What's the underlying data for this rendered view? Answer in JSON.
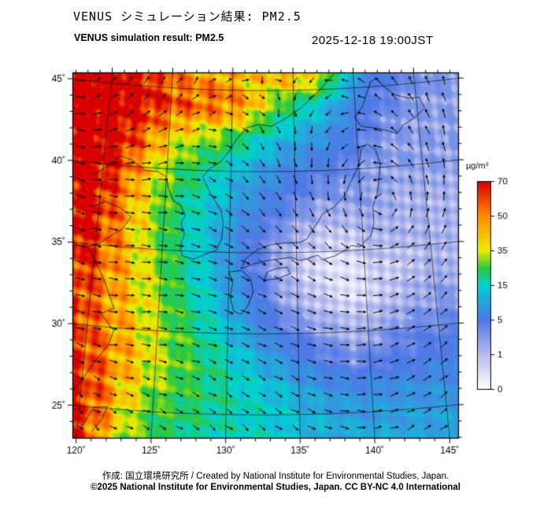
{
  "header": {
    "title_jp": "VENUS シミュレーション結果: PM2.5",
    "title_en": "VENUS simulation result: PM2.5",
    "datetime": "2025-12-18 19:00JST"
  },
  "footer": {
    "credit": "作成: 国立環境研究所 / Created by National Institute for Environmental Studies, Japan.",
    "license": "©2025 National Institute for Environmental Studies, Japan. CC BY-NC 4.0 International"
  },
  "chart_data": {
    "type": "heatmap",
    "title": "VENUS simulation result: PM2.5",
    "variable": "PM2.5 surface concentration with wind vectors",
    "units": "µg/m³",
    "axes": {
      "lat_ticks": [
        {
          "value": 45,
          "label": "45˚"
        },
        {
          "value": 40,
          "label": "40˚"
        },
        {
          "value": 35,
          "label": "35˚"
        },
        {
          "value": 30,
          "label": "30˚"
        },
        {
          "value": 25,
          "label": "25˚"
        }
      ],
      "lon_ticks": [
        {
          "value": 120,
          "label": "120˚"
        },
        {
          "value": 125,
          "label": "125˚"
        },
        {
          "value": 130,
          "label": "130˚"
        },
        {
          "value": 135,
          "label": "135˚"
        },
        {
          "value": 140,
          "label": "140˚"
        },
        {
          "value": 145,
          "label": "145˚"
        }
      ],
      "lon_range": [
        119.5,
        145.5
      ],
      "lat_range": [
        23,
        46
      ]
    },
    "colorbar": {
      "unit_label": "µg/m³",
      "ticks": [
        0,
        1,
        5,
        15,
        35,
        50,
        70
      ],
      "stops": [
        {
          "v": 0,
          "c": "#ffffff"
        },
        {
          "v": 1,
          "c": "#b8bcec"
        },
        {
          "v": 5,
          "c": "#5078e6"
        },
        {
          "v": 15,
          "c": "#00d2d2"
        },
        {
          "v": 25,
          "c": "#2cc83c"
        },
        {
          "v": 35,
          "c": "#ecec00"
        },
        {
          "v": 50,
          "c": "#ff8c00"
        },
        {
          "v": 70,
          "c": "#d80000"
        }
      ]
    },
    "grid": {
      "comment": "PM2.5 µg/m³ on lon 119..147 step 2 (cols) x lat 46..22 step -2 (rows)",
      "lon_start": 119,
      "lon_step": 2,
      "lat_start": 46,
      "lat_step": -2,
      "values": [
        [
          80,
          76,
          65,
          52,
          46,
          48,
          40,
          42,
          46,
          40,
          18,
          6,
          5,
          4,
          4
        ],
        [
          82,
          78,
          70,
          60,
          56,
          55,
          48,
          30,
          20,
          14,
          8,
          5,
          4,
          3,
          3
        ],
        [
          80,
          72,
          55,
          40,
          32,
          28,
          20,
          14,
          10,
          8,
          6,
          4,
          3,
          3,
          3
        ],
        [
          78,
          65,
          45,
          30,
          22,
          16,
          11,
          8,
          6,
          5,
          4,
          3,
          3,
          3,
          3
        ],
        [
          75,
          58,
          40,
          26,
          18,
          13,
          8,
          6,
          4,
          3,
          3,
          3,
          2,
          2,
          2
        ],
        [
          72,
          55,
          38,
          25,
          16,
          11,
          6,
          4,
          2,
          1,
          1,
          2,
          2,
          2,
          2
        ],
        [
          68,
          52,
          40,
          28,
          18,
          11,
          6,
          3,
          1,
          0.5,
          0.5,
          1,
          1,
          2,
          2
        ],
        [
          64,
          50,
          40,
          30,
          20,
          13,
          8,
          4,
          2,
          1,
          0.5,
          1,
          2,
          3,
          3
        ],
        [
          66,
          52,
          42,
          32,
          24,
          16,
          10,
          6,
          4,
          3,
          2,
          3,
          4,
          4,
          4
        ],
        [
          70,
          56,
          44,
          34,
          26,
          20,
          14,
          10,
          7,
          5,
          4,
          5,
          5,
          6,
          6
        ],
        [
          72,
          58,
          40,
          28,
          24,
          20,
          17,
          14,
          11,
          9,
          8,
          8,
          8,
          8,
          8
        ],
        [
          74,
          56,
          34,
          24,
          21,
          18,
          16,
          15,
          13,
          11,
          10,
          10,
          10,
          10,
          9
        ],
        [
          72,
          52,
          30,
          22,
          19,
          17,
          15,
          14,
          13,
          11,
          10,
          10,
          10,
          9,
          9
        ]
      ]
    },
    "wind": {
      "vortices": [
        {
          "lon": 141.8,
          "lat": 37.3,
          "k": 55
        },
        {
          "lon": 117.0,
          "lat": 46.0,
          "k": 45
        }
      ]
    },
    "coastlines": [
      [
        [
          119.2,
          25.5
        ],
        [
          119.8,
          26.3
        ],
        [
          120.3,
          27.1
        ],
        [
          120.9,
          28.0
        ],
        [
          121.6,
          28.9
        ],
        [
          121.9,
          29.8
        ],
        [
          121.4,
          30.3
        ],
        [
          120.9,
          30.8
        ],
        [
          121.8,
          31.2
        ],
        [
          121.4,
          31.9
        ],
        [
          121.0,
          32.7
        ],
        [
          120.4,
          33.6
        ],
        [
          119.8,
          34.4
        ],
        [
          119.4,
          34.8
        ],
        [
          120.3,
          35.1
        ],
        [
          120.9,
          35.5
        ],
        [
          121.9,
          36.1
        ],
        [
          122.5,
          36.9
        ],
        [
          121.6,
          37.4
        ],
        [
          120.4,
          37.7
        ],
        [
          119.6,
          37.3
        ],
        [
          119.2,
          37.4
        ]
      ],
      [
        [
          119.2,
          39.2
        ],
        [
          120.4,
          39.9
        ],
        [
          121.2,
          40.6
        ],
        [
          122.2,
          40.4
        ],
        [
          123.3,
          39.8
        ],
        [
          124.3,
          39.8
        ]
      ],
      [
        [
          124.3,
          39.8
        ],
        [
          125.0,
          39.5
        ],
        [
          125.2,
          38.8
        ],
        [
          125.6,
          38.1
        ],
        [
          126.2,
          37.8
        ],
        [
          126.6,
          37.2
        ],
        [
          126.3,
          36.7
        ],
        [
          126.6,
          36.0
        ],
        [
          126.3,
          35.3
        ],
        [
          126.5,
          34.7
        ],
        [
          127.3,
          34.5
        ],
        [
          128.1,
          34.8
        ],
        [
          129.0,
          35.1
        ],
        [
          129.4,
          35.8
        ],
        [
          129.5,
          36.8
        ],
        [
          129.3,
          37.6
        ],
        [
          128.6,
          38.4
        ],
        [
          128.2,
          39.0
        ],
        [
          127.8,
          39.6
        ],
        [
          128.3,
          40.1
        ],
        [
          129.2,
          40.6
        ],
        [
          129.8,
          41.2
        ],
        [
          130.4,
          42.0
        ]
      ],
      [
        [
          130.4,
          42.0
        ],
        [
          131.2,
          42.7
        ],
        [
          132.2,
          42.9
        ],
        [
          133.2,
          42.8
        ],
        [
          134.4,
          43.3
        ],
        [
          135.6,
          43.9
        ],
        [
          136.8,
          44.7
        ],
        [
          138.0,
          45.6
        ],
        [
          138.8,
          46.3
        ]
      ],
      [
        [
          130.0,
          33.8
        ],
        [
          130.3,
          33.1
        ],
        [
          130.1,
          32.3
        ],
        [
          130.4,
          31.4
        ],
        [
          130.9,
          31.2
        ],
        [
          131.4,
          31.7
        ],
        [
          131.8,
          32.6
        ],
        [
          131.6,
          33.4
        ],
        [
          130.9,
          33.9
        ],
        [
          130.0,
          33.8
        ]
      ],
      [
        [
          132.6,
          33.3
        ],
        [
          133.6,
          33.4
        ],
        [
          134.5,
          33.7
        ],
        [
          134.3,
          34.1
        ],
        [
          133.4,
          34.0
        ],
        [
          132.8,
          33.8
        ],
        [
          132.6,
          33.3
        ]
      ],
      [
        [
          130.9,
          34.0
        ],
        [
          131.8,
          34.3
        ],
        [
          132.7,
          34.5
        ],
        [
          133.6,
          34.6
        ],
        [
          134.6,
          34.7
        ],
        [
          135.2,
          34.5
        ],
        [
          135.8,
          34.6
        ],
        [
          136.6,
          34.8
        ],
        [
          136.9,
          34.5
        ],
        [
          137.8,
          34.7
        ],
        [
          138.6,
          35.0
        ],
        [
          139.1,
          35.3
        ],
        [
          139.8,
          35.2
        ],
        [
          140.1,
          35.5
        ],
        [
          140.6,
          35.8
        ],
        [
          140.9,
          36.6
        ],
        [
          140.9,
          37.6
        ],
        [
          141.3,
          38.4
        ],
        [
          141.5,
          39.2
        ],
        [
          141.7,
          40.2
        ],
        [
          141.4,
          41.1
        ],
        [
          140.8,
          41.5
        ],
        [
          140.3,
          41.2
        ],
        [
          140.1,
          40.5
        ],
        [
          139.8,
          39.9
        ],
        [
          139.3,
          39.2
        ],
        [
          138.8,
          38.4
        ],
        [
          137.9,
          37.7
        ],
        [
          137.0,
          37.3
        ],
        [
          136.8,
          37.0
        ],
        [
          136.2,
          36.3
        ],
        [
          135.8,
          35.8
        ],
        [
          135.2,
          35.6
        ],
        [
          134.2,
          35.6
        ],
        [
          133.1,
          35.5
        ],
        [
          132.1,
          35.2
        ],
        [
          131.2,
          34.6
        ],
        [
          130.9,
          34.0
        ]
      ],
      [
        [
          140.4,
          42.6
        ],
        [
          141.2,
          42.5
        ],
        [
          142.2,
          42.3
        ],
        [
          143.2,
          42.0
        ],
        [
          143.8,
          42.5
        ],
        [
          144.8,
          42.9
        ],
        [
          145.6,
          43.4
        ],
        [
          145.3,
          44.1
        ],
        [
          144.4,
          44.1
        ],
        [
          143.3,
          44.4
        ],
        [
          142.4,
          45.0
        ],
        [
          141.9,
          45.5
        ],
        [
          141.4,
          45.3
        ],
        [
          141.0,
          44.6
        ],
        [
          140.6,
          43.8
        ],
        [
          139.9,
          43.2
        ],
        [
          140.4,
          42.6
        ]
      ],
      [
        [
          120.2,
          23.6
        ],
        [
          121.0,
          25.0
        ],
        [
          121.9,
          25.1
        ],
        [
          121.6,
          24.3
        ],
        [
          121.0,
          23.5
        ]
      ],
      [
        [
          141.8,
          46.1
        ],
        [
          142.5,
          46.3
        ]
      ]
    ]
  }
}
